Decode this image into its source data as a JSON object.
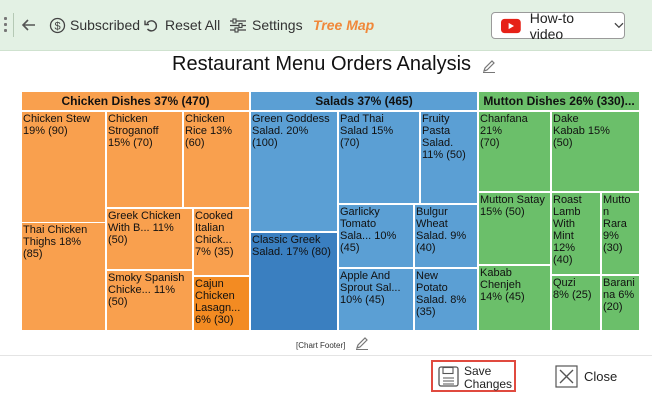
{
  "toolbar": {
    "subscribed_label": "Subscribed",
    "reset_label": "Reset All",
    "settings_label": "Settings",
    "chart_type_label": "Tree Map",
    "howto_label": "How-to video"
  },
  "chart": {
    "title": "Restaurant Menu Orders Analysis",
    "footer": "[Chart Footer]"
  },
  "chart_data": {
    "type": "treemap",
    "groups": [
      {
        "name": "Chicken Dishes",
        "header": "Chicken Dishes 37% (470)",
        "value": 470,
        "color": "#f9a04e",
        "items": [
          {
            "label": "Chicken Stew\n19% (90)",
            "value": 90
          },
          {
            "label": "Thai Chicken\nThighs 18%\n(85)",
            "value": 85
          },
          {
            "label": "Chicken\nStroganoff\n15% (70)",
            "value": 70
          },
          {
            "label": "Chicken\nRice 13%\n(60)",
            "value": 60
          },
          {
            "label": "Greek Chicken\nWith B... 11%\n(50)",
            "value": 50
          },
          {
            "label": "Smoky Spanish\nChicke... 11%\n(50)",
            "value": 50
          },
          {
            "label": "Cooked\nItalian\nChick...\n7% (35)",
            "value": 35
          },
          {
            "label": "Cajun\nChicken\nLasagn...\n6% (30)",
            "value": 30
          }
        ]
      },
      {
        "name": "Salads",
        "header": "Salads 37% (465)",
        "value": 465,
        "color": "#5b9fd4",
        "items": [
          {
            "label": "Green Goddess\nSalad. 20%\n(100)",
            "value": 100
          },
          {
            "label": "Classic Greek\nSalad. 17% (80)",
            "value": 80
          },
          {
            "label": "Pad Thai\nSalad 15%\n(70)",
            "value": 70
          },
          {
            "label": "Fruity\nPasta\nSalad.\n11% (50)",
            "value": 50
          },
          {
            "label": "Garlicky\nTomato\nSala... 10%\n(45)",
            "value": 45
          },
          {
            "label": "Bulgur\nWheat\nSalad. 9%\n(40)",
            "value": 40
          },
          {
            "label": "Apple And\nSprout Sal...\n10% (45)",
            "value": 45
          },
          {
            "label": "New\nPotato\nSalad. 8%\n(35)",
            "value": 35
          }
        ]
      },
      {
        "name": "Mutton Dishes",
        "header": "Mutton Dishes 26% (330)...",
        "value": 330,
        "color": "#6bbf6a",
        "items": [
          {
            "label": "Chanfana 21%\n(70)",
            "value": 70
          },
          {
            "label": "Dake\nKabab 15%\n(50)",
            "value": 50
          },
          {
            "label": "Mutton Satay\n15% (50)",
            "value": 50
          },
          {
            "label": "Roast\nLamb\nWith\nMint\n12%\n(40)",
            "value": 40
          },
          {
            "label": "Mutto\nn\nRara\n9%\n(30)",
            "value": 30
          },
          {
            "label": "Kabab\nChenjeh\n14% (45)",
            "value": 45
          },
          {
            "label": "Quzi\n8% (25)",
            "value": 25
          },
          {
            "label": "Barani\nna 6%\n(20)",
            "value": 20
          }
        ]
      }
    ]
  },
  "actions": {
    "save_label": "Save\nChanges",
    "close_label": "Close"
  }
}
